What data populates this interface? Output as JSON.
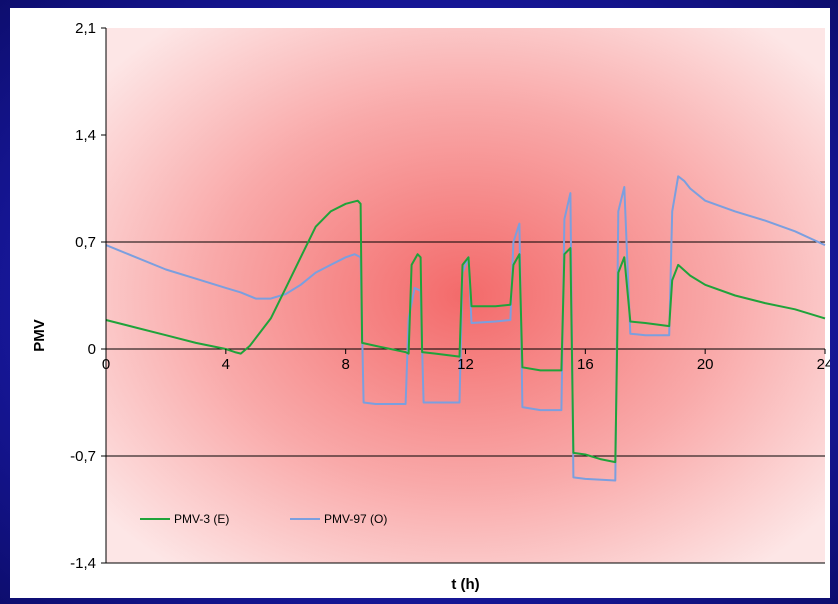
{
  "chart_data": {
    "type": "line",
    "xlabel": "t (h)",
    "ylabel": "PMV",
    "xlim": [
      0,
      24
    ],
    "ylim": [
      -1.4,
      2.1
    ],
    "x_ticks": [
      0,
      4,
      8,
      12,
      16,
      20,
      24
    ],
    "x_tick_labels": [
      "0",
      "4",
      "8",
      "12",
      "16",
      "20",
      "24"
    ],
    "y_ticks": [
      2.1,
      1.4,
      0.7,
      0,
      -0.7,
      -1.4
    ],
    "y_tick_labels": [
      "2,1",
      "1,4",
      "0,7",
      "0",
      "-0,7",
      "-1,4"
    ],
    "reference_lines": [
      0.7,
      0,
      -0.7
    ],
    "legend_position": "bottom-left",
    "series": [
      {
        "name": "PMV-3 (E)",
        "color": "#1fa33a",
        "points": [
          [
            0,
            0.19
          ],
          [
            1,
            0.14
          ],
          [
            2,
            0.09
          ],
          [
            3,
            0.04
          ],
          [
            4,
            0.0
          ],
          [
            4.3,
            -0.02
          ],
          [
            4.5,
            -0.03
          ],
          [
            4.8,
            0.02
          ],
          [
            5.5,
            0.2
          ],
          [
            6,
            0.4
          ],
          [
            6.5,
            0.6
          ],
          [
            7,
            0.8
          ],
          [
            7.5,
            0.9
          ],
          [
            8,
            0.95
          ],
          [
            8.4,
            0.97
          ],
          [
            8.5,
            0.95
          ],
          [
            8.55,
            0.04
          ],
          [
            9,
            0.02
          ],
          [
            10,
            -0.02
          ],
          [
            10.1,
            -0.03
          ],
          [
            10.2,
            0.55
          ],
          [
            10.4,
            0.62
          ],
          [
            10.5,
            0.6
          ],
          [
            10.55,
            -0.02
          ],
          [
            11,
            -0.03
          ],
          [
            11.8,
            -0.05
          ],
          [
            11.9,
            0.55
          ],
          [
            12.1,
            0.6
          ],
          [
            12.2,
            0.28
          ],
          [
            13,
            0.28
          ],
          [
            13.5,
            0.29
          ],
          [
            13.6,
            0.55
          ],
          [
            13.8,
            0.62
          ],
          [
            13.9,
            -0.12
          ],
          [
            14.5,
            -0.14
          ],
          [
            15.2,
            -0.14
          ],
          [
            15.3,
            0.62
          ],
          [
            15.5,
            0.66
          ],
          [
            15.6,
            -0.68
          ],
          [
            16,
            -0.69
          ],
          [
            16.5,
            -0.72
          ],
          [
            17,
            -0.74
          ],
          [
            17.1,
            0.5
          ],
          [
            17.3,
            0.6
          ],
          [
            17.5,
            0.18
          ],
          [
            18,
            0.17
          ],
          [
            18.8,
            0.15
          ],
          [
            18.9,
            0.45
          ],
          [
            19.1,
            0.55
          ],
          [
            19.5,
            0.48
          ],
          [
            20,
            0.42
          ],
          [
            21,
            0.35
          ],
          [
            22,
            0.3
          ],
          [
            23,
            0.26
          ],
          [
            24,
            0.2
          ]
        ]
      },
      {
        "name": "PMV-97 (O)",
        "color": "#7b9fdf",
        "points": [
          [
            0,
            0.68
          ],
          [
            1,
            0.6
          ],
          [
            2,
            0.52
          ],
          [
            3,
            0.46
          ],
          [
            4,
            0.4
          ],
          [
            4.5,
            0.37
          ],
          [
            5,
            0.33
          ],
          [
            5.5,
            0.33
          ],
          [
            6,
            0.36
          ],
          [
            6.5,
            0.42
          ],
          [
            7,
            0.5
          ],
          [
            7.5,
            0.55
          ],
          [
            8,
            0.6
          ],
          [
            8.3,
            0.62
          ],
          [
            8.5,
            0.6
          ],
          [
            8.6,
            -0.35
          ],
          [
            9,
            -0.36
          ],
          [
            10,
            -0.36
          ],
          [
            10.1,
            0.2
          ],
          [
            10.3,
            0.4
          ],
          [
            10.5,
            0.38
          ],
          [
            10.6,
            -0.35
          ],
          [
            11,
            -0.35
          ],
          [
            11.8,
            -0.35
          ],
          [
            11.9,
            0.5
          ],
          [
            12.1,
            0.6
          ],
          [
            12.2,
            0.17
          ],
          [
            13,
            0.18
          ],
          [
            13.5,
            0.19
          ],
          [
            13.6,
            0.7
          ],
          [
            13.8,
            0.82
          ],
          [
            13.9,
            -0.38
          ],
          [
            14.5,
            -0.4
          ],
          [
            15.2,
            -0.4
          ],
          [
            15.3,
            0.85
          ],
          [
            15.5,
            1.02
          ],
          [
            15.6,
            -0.84
          ],
          [
            16,
            -0.85
          ],
          [
            17,
            -0.86
          ],
          [
            17.1,
            0.9
          ],
          [
            17.3,
            1.06
          ],
          [
            17.5,
            0.1
          ],
          [
            18,
            0.09
          ],
          [
            18.8,
            0.09
          ],
          [
            18.9,
            0.9
          ],
          [
            19.1,
            1.13
          ],
          [
            19.3,
            1.1
          ],
          [
            19.5,
            1.05
          ],
          [
            20,
            0.97
          ],
          [
            21,
            0.9
          ],
          [
            22,
            0.84
          ],
          [
            23,
            0.77
          ],
          [
            24,
            0.68
          ]
        ]
      }
    ]
  }
}
